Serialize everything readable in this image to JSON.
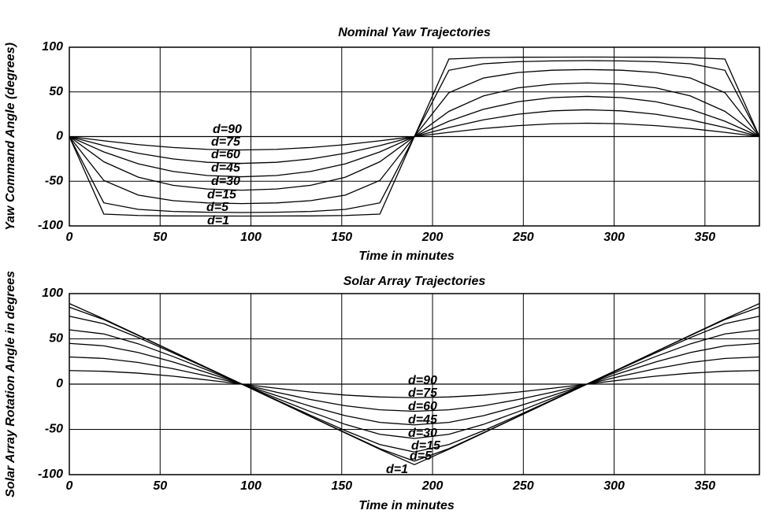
{
  "chart_data": [
    {
      "type": "line",
      "title": "Nominal Yaw Trajectories",
      "x_label": "Time in minutes",
      "y_label": "Yaw Command Angle (degrees)",
      "x": [
        0,
        19,
        38,
        57,
        76,
        95,
        114,
        133,
        152,
        171,
        190,
        209,
        228,
        247,
        266,
        285,
        304,
        323,
        342,
        361,
        380
      ],
      "xlim": [
        0,
        380
      ],
      "xticks": [
        0,
        50,
        100,
        150,
        200,
        250,
        300,
        350
      ],
      "ylim": [
        -100,
        100
      ],
      "yticks": [
        -100,
        -50,
        0,
        50,
        100
      ],
      "grid": true,
      "series": [
        {
          "name": "d=1",
          "color": "#000000",
          "values": [
            0,
            -86.8,
            -88.3,
            -88.8,
            -88.9,
            -89.0,
            -88.9,
            -88.8,
            -88.3,
            -86.8,
            0,
            86.8,
            88.3,
            88.8,
            88.9,
            89.0,
            88.9,
            88.8,
            88.3,
            86.8,
            0
          ]
        },
        {
          "name": "d=5",
          "color": "#000000",
          "values": [
            0,
            -74.2,
            -81.5,
            -83.8,
            -84.7,
            -85.0,
            -84.7,
            -83.8,
            -81.5,
            -74.2,
            0,
            74.2,
            81.5,
            83.8,
            84.7,
            85.0,
            84.7,
            83.8,
            81.5,
            74.2,
            0
          ]
        },
        {
          "name": "d=15",
          "color": "#000000",
          "values": [
            0,
            -49.1,
            -65.5,
            -71.7,
            -74.3,
            -75.0,
            -74.3,
            -71.7,
            -65.5,
            -49.1,
            0,
            49.1,
            65.5,
            71.7,
            74.3,
            75.0,
            74.3,
            71.7,
            65.5,
            49.1,
            0
          ]
        },
        {
          "name": "d=30",
          "color": "#000000",
          "values": [
            0,
            -28.2,
            -45.5,
            -54.5,
            -58.7,
            -60.0,
            -58.7,
            -54.5,
            -45.5,
            -28.2,
            0,
            28.2,
            45.5,
            54.5,
            58.7,
            60.0,
            58.7,
            54.5,
            45.5,
            28.2,
            0
          ]
        },
        {
          "name": "d=45",
          "color": "#000000",
          "values": [
            0,
            -17.2,
            -30.5,
            -39.0,
            -43.6,
            -45.0,
            -43.6,
            -39.0,
            -30.5,
            -17.2,
            0,
            17.2,
            30.5,
            39.0,
            43.6,
            45.0,
            43.6,
            39.0,
            30.5,
            17.2,
            0
          ]
        },
        {
          "name": "d=60",
          "color": "#000000",
          "values": [
            0,
            -10.1,
            -18.7,
            -25.0,
            -28.8,
            -30.0,
            -28.8,
            -25.0,
            -18.7,
            -10.1,
            0,
            10.1,
            18.7,
            25.0,
            28.8,
            30.0,
            28.8,
            25.0,
            18.7,
            10.1,
            0
          ]
        },
        {
          "name": "d=75",
          "color": "#000000",
          "values": [
            0,
            -4.7,
            -9.0,
            -12.2,
            -14.3,
            -15.0,
            -14.3,
            -12.2,
            -9.0,
            -4.7,
            0,
            4.7,
            9.0,
            12.2,
            14.3,
            15.0,
            14.3,
            12.2,
            9.0,
            4.7,
            0
          ]
        },
        {
          "name": "d=90",
          "color": "#000000",
          "values": [
            0,
            0,
            0,
            0,
            0,
            0,
            0,
            0,
            0,
            0,
            0,
            0,
            0,
            0,
            0,
            0,
            0,
            0,
            0,
            0,
            0
          ]
        }
      ]
    },
    {
      "type": "line",
      "title": "Solar Array Trajectories",
      "x_label": "Time in minutes",
      "y_label": "Solar Array Rotation Angle in degrees",
      "x": [
        0,
        19,
        38,
        57,
        76,
        95,
        114,
        133,
        152,
        171,
        190,
        209,
        228,
        247,
        266,
        285,
        304,
        323,
        342,
        361,
        380
      ],
      "xlim": [
        0,
        380
      ],
      "xticks": [
        0,
        50,
        100,
        150,
        200,
        250,
        300,
        350
      ],
      "ylim": [
        -100,
        100
      ],
      "yticks": [
        -100,
        -50,
        0,
        50,
        100
      ],
      "grid": true,
      "series": [
        {
          "name": "d=1",
          "color": "#000000",
          "values": [
            89.0,
            72.0,
            54.0,
            36.0,
            18.0,
            0,
            -18.0,
            -36.0,
            -54.0,
            -72.0,
            -89.0,
            -72.0,
            -54.0,
            -36.0,
            -18.0,
            0,
            18.0,
            36.0,
            54.0,
            72.0,
            89.0
          ]
        },
        {
          "name": "d=5",
          "color": "#000000",
          "values": [
            85.0,
            71.3,
            53.7,
            35.9,
            17.9,
            0,
            -17.9,
            -35.9,
            -53.7,
            -71.3,
            -85.0,
            -71.3,
            -53.7,
            -35.9,
            -17.9,
            0,
            17.9,
            35.9,
            53.7,
            71.3,
            85.0
          ]
        },
        {
          "name": "d=15",
          "color": "#000000",
          "values": [
            75.0,
            66.7,
            51.4,
            34.6,
            17.4,
            0,
            -17.4,
            -34.6,
            -51.4,
            -66.7,
            -75.0,
            -66.7,
            -51.4,
            -34.6,
            -17.4,
            0,
            17.4,
            34.6,
            51.4,
            66.7,
            75.0
          ]
        },
        {
          "name": "d=30",
          "color": "#000000",
          "values": [
            60.0,
            55.4,
            44.5,
            30.6,
            15.5,
            0,
            -15.5,
            -30.6,
            -44.5,
            -55.4,
            -60.0,
            -55.4,
            -44.5,
            -30.6,
            -15.5,
            0,
            15.5,
            30.6,
            44.5,
            55.4,
            60.0
          ]
        },
        {
          "name": "d=45",
          "color": "#000000",
          "values": [
            45.0,
            42.3,
            34.9,
            24.6,
            12.6,
            0,
            -12.6,
            -24.6,
            -34.9,
            -42.3,
            -45.0,
            -42.3,
            -34.9,
            -24.6,
            -12.6,
            0,
            12.6,
            24.6,
            34.9,
            42.3,
            45.0
          ]
        },
        {
          "name": "d=60",
          "color": "#000000",
          "values": [
            30.0,
            28.4,
            23.9,
            17.1,
            8.9,
            0,
            -8.9,
            -17.1,
            -23.9,
            -28.4,
            -30.0,
            -28.4,
            -23.9,
            -17.1,
            -8.9,
            0,
            8.9,
            17.1,
            23.9,
            28.4,
            30.0
          ]
        },
        {
          "name": "d=75",
          "color": "#000000",
          "values": [
            15.0,
            14.2,
            12.1,
            8.8,
            4.6,
            0,
            -4.6,
            -8.8,
            -12.1,
            -14.2,
            -15.0,
            -14.2,
            -12.1,
            -8.8,
            -4.6,
            0,
            4.6,
            8.8,
            12.1,
            14.2,
            15.0
          ]
        },
        {
          "name": "d=90",
          "color": "#000000",
          "values": [
            0,
            0,
            0,
            0,
            0,
            0,
            0,
            0,
            0,
            0,
            0,
            0,
            0,
            0,
            0,
            0,
            0,
            0,
            0,
            0,
            0
          ]
        }
      ]
    }
  ]
}
